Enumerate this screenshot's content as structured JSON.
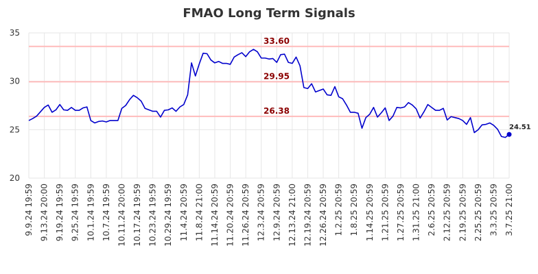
{
  "chart_data": {
    "type": "line",
    "title": "FMAO Long Term Signals",
    "xlabel": "",
    "ylabel": "",
    "ylim": [
      20,
      35
    ],
    "y_ticks": [
      "20",
      "25",
      "30",
      "35"
    ],
    "x_tick_labels": [
      "9.9.24 19:59",
      "9.13.24 20:00",
      "9.19.24 19:59",
      "9.25.24 19:59",
      "10.1.24 19:59",
      "10.7.24 19:59",
      "10.11.24 20:00",
      "10.17.24 19:59",
      "10.23.24 19:59",
      "10.29.24 19:59",
      "11.4.24 20:59",
      "11.8.24 21:00",
      "11.14.24 20:59",
      "11.20.24 20:59",
      "11.26.24 20:59",
      "12.3.24 20:59",
      "12.9.24 20:59",
      "12.13.24 21:00",
      "12.19.24 20:59",
      "12.26.24 20:59",
      "1.2.25 20:59",
      "1.8.25 20:59",
      "1.14.25 20:59",
      "1.21.25 20:59",
      "1.27.25 20:59",
      "1.31.25 21:00",
      "2.6.25 20:59",
      "2.12.25 20:59",
      "2.19.25 20:59",
      "2.25.25 20:59",
      "3.3.25 20:59",
      "3.7.25 21:00"
    ],
    "grid": true,
    "legend": "none",
    "series_color": "#0000cc",
    "reference_line_color": "#ffbbbb",
    "reference_lines": [
      {
        "value": 33.6,
        "label": "33.60"
      },
      {
        "value": 29.95,
        "label": "29.95"
      },
      {
        "value": 26.38,
        "label": "26.38"
      }
    ],
    "last_point": {
      "value": 24.51,
      "label": "24.51"
    },
    "series": [
      {
        "values": [
          25.95,
          26.15,
          26.4,
          26.85,
          27.3,
          27.55,
          26.8,
          27.05,
          27.6,
          27.05,
          27.0,
          27.3,
          27.0,
          27.0,
          27.25,
          27.35,
          25.95,
          25.7,
          25.85,
          25.9,
          25.8,
          25.95,
          25.95,
          25.95,
          27.2,
          27.5,
          28.1,
          28.55,
          28.3,
          27.95,
          27.2,
          27.05,
          26.9,
          26.9,
          26.3,
          27.0,
          27.05,
          27.25,
          26.9,
          27.35,
          27.6,
          28.6,
          31.9,
          30.55,
          31.8,
          32.9,
          32.85,
          32.2,
          31.9,
          32.05,
          31.85,
          31.85,
          31.75,
          32.5,
          32.75,
          32.95,
          32.55,
          33.05,
          33.3,
          33.05,
          32.4,
          32.4,
          32.3,
          32.35,
          31.95,
          32.75,
          32.8,
          31.95,
          31.85,
          32.5,
          31.6,
          29.35,
          29.25,
          29.75,
          28.9,
          29.05,
          29.2,
          28.6,
          28.55,
          29.45,
          28.4,
          28.2,
          27.55,
          26.8,
          26.8,
          26.7,
          25.15,
          26.25,
          26.6,
          27.3,
          26.3,
          26.75,
          27.25,
          25.95,
          26.4,
          27.3,
          27.25,
          27.35,
          27.8,
          27.55,
          27.15,
          26.2,
          26.85,
          27.6,
          27.3,
          27.0,
          27.0,
          27.2,
          26.0,
          26.35,
          26.25,
          26.15,
          25.95,
          25.55,
          26.25,
          24.7,
          25.0,
          25.5,
          25.55,
          25.7,
          25.45,
          25.05,
          24.3,
          24.2,
          24.51
        ]
      }
    ]
  }
}
